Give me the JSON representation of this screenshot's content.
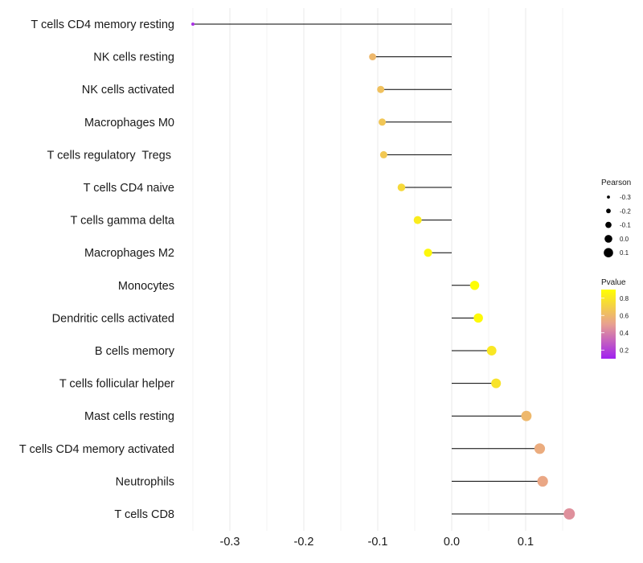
{
  "chart_data": {
    "type": "lollipop",
    "title": "",
    "xlabel": "",
    "ylabel": "",
    "xlim": [
      -0.35,
      0.165
    ],
    "x_ticks": [
      -0.3,
      -0.2,
      -0.1,
      0.0,
      0.1
    ],
    "x_tick_labels": [
      "-0.3",
      "-0.2",
      "-0.1",
      "0.0",
      "0.1"
    ],
    "grid": true,
    "categories": [
      "T cells CD4 memory resting",
      "NK cells resting",
      "NK cells activated",
      "Macrophages M0",
      "T cells regulatory  Tregs ",
      "T cells CD4 naive",
      "T cells gamma delta",
      "Macrophages M2",
      "Monocytes",
      "Dendritic cells activated",
      "B cells memory",
      "T cells follicular helper",
      "Mast cells resting",
      "T cells CD4 memory activated",
      "Neutrophils",
      "T cells CD8"
    ],
    "pearson": [
      -0.35,
      -0.107,
      -0.096,
      -0.094,
      -0.092,
      -0.068,
      -0.046,
      -0.032,
      0.031,
      0.036,
      0.054,
      0.06,
      0.101,
      0.119,
      0.123,
      0.159
    ],
    "pvalue": [
      0.15,
      0.6,
      0.64,
      0.66,
      0.67,
      0.74,
      0.82,
      0.87,
      0.89,
      0.88,
      0.8,
      0.78,
      0.6,
      0.55,
      0.53,
      0.45
    ],
    "size_legend": {
      "title": "Pearson",
      "labels": [
        "-0.3",
        "-0.2",
        "-0.1",
        "0.0",
        "0.1"
      ],
      "values": [
        -0.3,
        -0.2,
        -0.1,
        0.0,
        0.1
      ]
    },
    "color_legend": {
      "title": "Pvalue",
      "labels": [
        "0.8",
        "0.6",
        "0.4",
        "0.2"
      ],
      "values": [
        0.8,
        0.6,
        0.4,
        0.2
      ],
      "range": [
        0.1,
        0.9
      ],
      "low_color": "#a020f0",
      "mid_color": "#e8a090",
      "high_color": "#ffff00"
    },
    "colors": {
      "stem": "#000000",
      "grid": "#ebebeb"
    }
  }
}
